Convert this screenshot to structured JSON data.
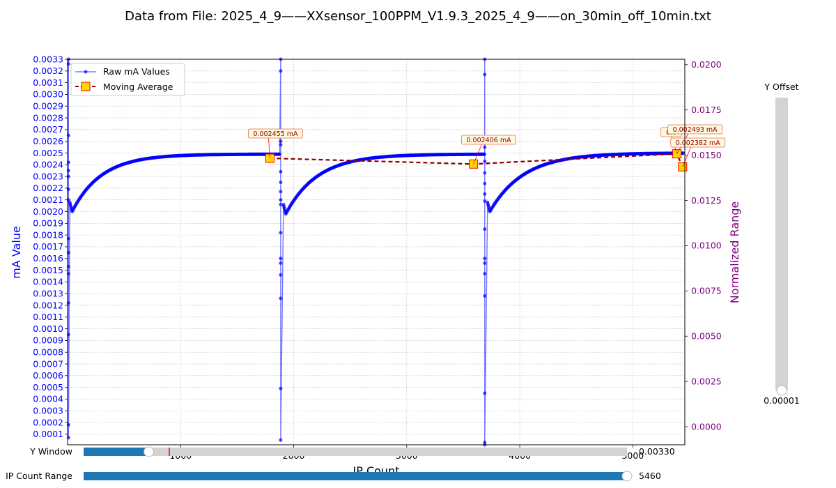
{
  "title": "Data from File: 2025_4_9——XXsensor_100PPM_V1.9.3_2025_4_9——on_30min_off_10min.txt",
  "colors": {
    "raw": "#0000ff",
    "avg_line": "#8b0000",
    "avg_marker_fill": "#ffd700",
    "avg_marker_edge": "#ff0000",
    "right_axis": "#800080",
    "slider_fill": "#1f77b4",
    "slider_track": "#d3d3d3"
  },
  "chart_data": {
    "type": "line",
    "title": "Data from File: 2025_4_9——XXsensor_100PPM_V1.9.3_2025_4_9——on_30min_off_10min.txt",
    "xlabel": "IP Count",
    "ylabel": "mA Value",
    "y2label": "Normalized Range",
    "xlim": [
      0,
      5460
    ],
    "ylim": [
      1e-05,
      0.0033
    ],
    "y2lim": [
      -0.001,
      0.0203
    ],
    "xticks": [
      "1000",
      "2000",
      "3000",
      "4000",
      "5000"
    ],
    "yticks": [
      "0.0001",
      "0.0002",
      "0.0003",
      "0.0004",
      "0.0005",
      "0.0006",
      "0.0007",
      "0.0008",
      "0.0009",
      "0.0010",
      "0.0011",
      "0.0012",
      "0.0013",
      "0.0014",
      "0.0015",
      "0.0016",
      "0.0017",
      "0.0018",
      "0.0019",
      "0.0020",
      "0.0021",
      "0.0022",
      "0.0023",
      "0.0024",
      "0.0025",
      "0.0026",
      "0.0027",
      "0.0028",
      "0.0029",
      "0.0030",
      "0.0031",
      "0.0032",
      "0.0033"
    ],
    "y2ticks": [
      "0.0000",
      "0.0025",
      "0.0050",
      "0.0075",
      "0.0100",
      "0.0125",
      "0.0150",
      "0.0175",
      "0.0200"
    ],
    "grid": true,
    "legend_position": "top-left",
    "series": [
      {
        "name": "Raw mA Values",
        "cycles": [
          {
            "start": 0,
            "end": 1890,
            "min_x": 40,
            "min_y": 0.002,
            "plateau": 0.00249,
            "tau": 260
          },
          {
            "start": 1890,
            "end": 3700,
            "min_x": 1930,
            "min_y": 0.00198,
            "plateau": 0.00249,
            "tau": 280
          },
          {
            "start": 3700,
            "end": 5460,
            "min_x": 3735,
            "min_y": 0.002,
            "plateau": 0.0025,
            "tau": 300
          }
        ],
        "spikes": [
          {
            "x": 8,
            "values": [
              0.0033,
              0.00326,
              0.00265,
              0.00242,
              0.00235,
              0.0023,
              0.00219,
              0.0021,
              0.00177,
              0.00165,
              0.00153,
              0.00147,
              0.00122,
              0.00095,
              0.00018,
              7e-05
            ]
          },
          {
            "x": 1885,
            "values": [
              0.0033,
              0.0032,
              0.0026,
              0.00257,
              0.00234,
              0.00225,
              0.00217,
              0.0021,
              0.00206,
              0.00182,
              0.0016,
              0.00156,
              0.00146,
              0.00126,
              0.00049,
              5e-05
            ]
          },
          {
            "x": 3690,
            "values": [
              0.0033,
              0.00317,
              0.00255,
              0.00243,
              0.00233,
              0.00224,
              0.00215,
              0.00209,
              0.00185,
              0.0016,
              0.00156,
              0.00147,
              0.00128,
              0.00045,
              3e-05,
              1e-05
            ]
          }
        ]
      },
      {
        "name": "Moving Average",
        "x": [
          1790,
          3590,
          5390,
          5440
        ],
        "y": [
          0.002455,
          0.002406,
          0.002493,
          0.002382
        ]
      }
    ],
    "annotations": [
      "0.002455 mA",
      "0.002406 mA",
      "0.002493 mA",
      "0.002382 mA",
      "0.0"
    ]
  },
  "widgets": {
    "y_window_label": "Y Window",
    "y_window_value": "0.00330",
    "y_window_fraction": 0.12,
    "ip_range_label": "IP Count Range",
    "ip_range_value": "5460",
    "ip_range_fraction": 1.0,
    "y_offset_label": "Y Offset",
    "y_offset_value": "0.00001",
    "y_offset_fraction": 0.0
  }
}
